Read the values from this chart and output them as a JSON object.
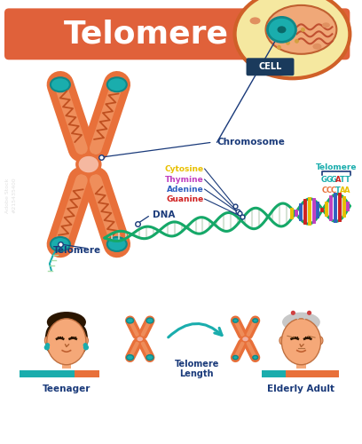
{
  "title": "Telomere",
  "title_color": "#ffffff",
  "title_bg_color": "#e0613a",
  "bg_color": "#ffffff",
  "teal_color": "#1aadad",
  "orange_color": "#e8703a",
  "light_orange": "#f5a878",
  "dark_blue": "#1a3a7a",
  "cell_label": "CELL",
  "cell_bg": "#1a3a5c",
  "chromosome_label": "Chromosome",
  "dna_label": "DNA",
  "telomere_label": "Telomere",
  "cytosine_label": "Cytosine",
  "cytosine_color": "#e8c000",
  "thymine_label": "Thymine",
  "thymine_color": "#c040c0",
  "adenine_label": "Adenine",
  "adenine_color": "#3060c0",
  "guanine_label": "Guanine",
  "guanine_color": "#d02020",
  "teenager_label": "Teenager",
  "elderly_label": "Elderly Adult",
  "telomere_length_label": "Telomere\nLength",
  "green_dna": "#15a868",
  "label_line_color": "#1a3a7a"
}
